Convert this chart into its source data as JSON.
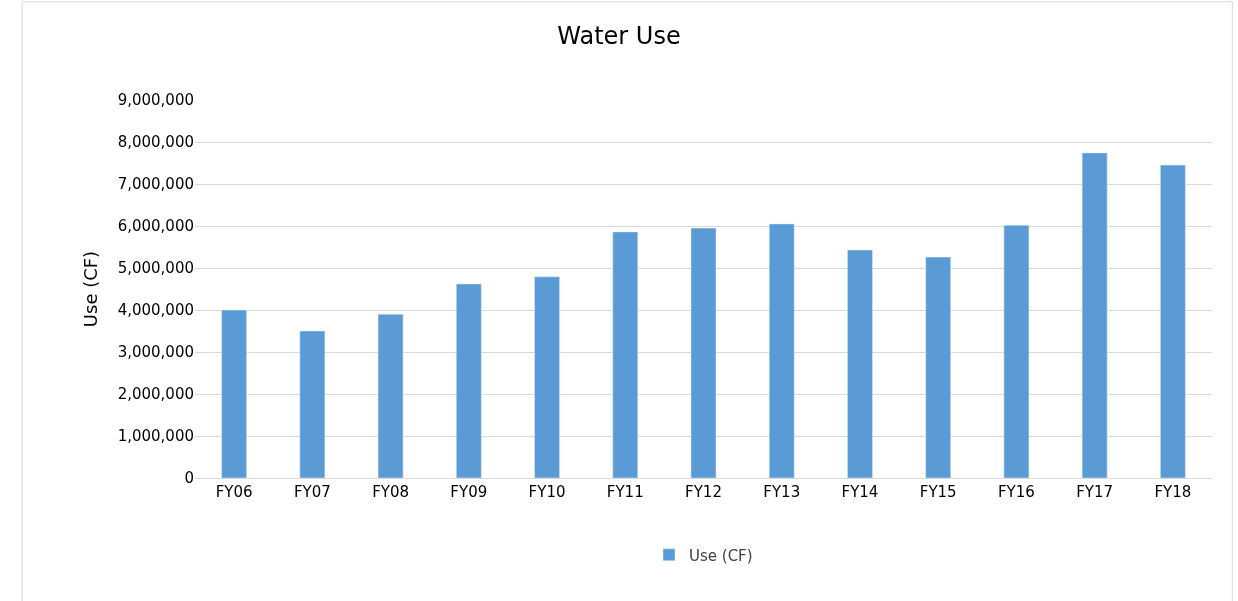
{
  "chart_data": {
    "type": "bar",
    "title": "Water Use",
    "ylabel": "Use (CF)",
    "categories": [
      "FY06",
      "FY07",
      "FY08",
      "FY09",
      "FY10",
      "FY11",
      "FY12",
      "FY13",
      "FY14",
      "FY15",
      "FY16",
      "FY17",
      "FY18"
    ],
    "series": [
      {
        "name": "Use (CF)",
        "color": "#5b9bd5",
        "values": [
          4000000,
          3500000,
          3900000,
          4620000,
          4790000,
          5860000,
          5950000,
          6050000,
          5430000,
          5260000,
          6020000,
          7740000,
          7450000
        ]
      }
    ],
    "ylim": [
      0,
      9000000
    ],
    "yticks": [
      {
        "value": 0,
        "label": "0"
      },
      {
        "value": 1000000,
        "label": "1,000,000"
      },
      {
        "value": 2000000,
        "label": "2,000,000"
      },
      {
        "value": 3000000,
        "label": "3,000,000"
      },
      {
        "value": 4000000,
        "label": "4,000,000"
      },
      {
        "value": 5000000,
        "label": "5,000,000"
      },
      {
        "value": 6000000,
        "label": "6,000,000"
      },
      {
        "value": 7000000,
        "label": "7,000,000"
      },
      {
        "value": 8000000,
        "label": "8,000,000"
      },
      {
        "value": 9000000,
        "label": "9,000,000"
      }
    ],
    "grid": "y",
    "legend": "bottom"
  }
}
